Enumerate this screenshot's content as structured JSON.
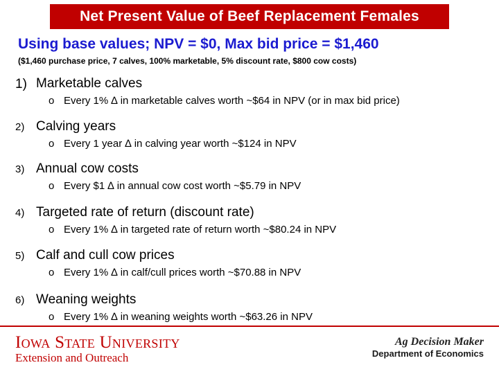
{
  "title": "Net Present Value of Beef Replacement Females",
  "subtitle": "Using base values; NPV = $0, Max bid price = $1,460",
  "params": "($1,460 purchase price, 7 calves, 100% marketable, 5% discount rate, $800 cow costs)",
  "bullet_symbol": "o",
  "items": [
    {
      "num": "1)",
      "label": "Marketable calves",
      "detail": "Every 1% ∆ in marketable calves worth ~$64 in NPV (or in max bid price)"
    },
    {
      "num": "2)",
      "label": "Calving years",
      "detail": "Every 1 year ∆ in calving year worth ~$124 in NPV"
    },
    {
      "num": "3)",
      "label": "Annual cow costs",
      "detail": "Every $1 ∆ in annual cow cost worth ~$5.79 in NPV"
    },
    {
      "num": "4)",
      "label": "Targeted rate of return (discount rate)",
      "detail": "Every 1% ∆ in targeted rate of return worth ~$80.24 in NPV"
    },
    {
      "num": "5)",
      "label": "Calf and cull cow prices",
      "detail": "Every 1% ∆ in calf/cull prices worth ~$70.88 in NPV"
    },
    {
      "num": "6)",
      "label": "Weaning weights",
      "detail": "Every 1% ∆ in weaning weights worth ~$63.26 in NPV"
    }
  ],
  "footer": {
    "university": "Iowa State University",
    "unit": "Extension and Outreach",
    "brand": "Ag Decision Maker",
    "department": "Department of Economics"
  },
  "colors": {
    "title_bg": "#c00000",
    "subtitle": "#1b1bd0",
    "isu_red": "#c00000"
  }
}
